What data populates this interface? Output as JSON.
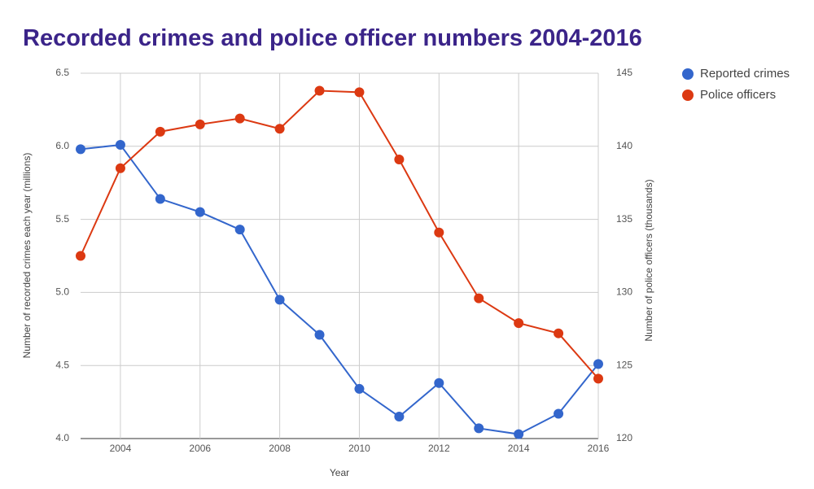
{
  "chart_data": {
    "type": "line",
    "title": "Recorded crimes and police officer numbers 2004-2016",
    "x_label": "Year",
    "y_label": "Number of recorded crimes each year (millions)",
    "y2_label": "Number of police officers (thousands)",
    "x": [
      2003,
      2004,
      2005,
      2006,
      2007,
      2008,
      2009,
      2010,
      2011,
      2012,
      2013,
      2014,
      2015,
      2016
    ],
    "xlim": [
      2003,
      2016
    ],
    "xticks": [
      2004,
      2006,
      2008,
      2010,
      2012,
      2014,
      2016
    ],
    "ylim": [
      4,
      6.5
    ],
    "yticks": [
      {
        "value": 4,
        "label": "4.0"
      },
      4.5,
      {
        "value": 5,
        "label": "5.0"
      },
      5.5,
      {
        "value": 6,
        "label": "6.0"
      },
      6.5
    ],
    "y2lim": [
      120,
      145
    ],
    "y2ticks": [
      120,
      125,
      130,
      135,
      140,
      145
    ],
    "grid": true,
    "legend": "right",
    "series": [
      {
        "name": "Reported crimes",
        "color": "#3366cc",
        "axis": "y",
        "values": [
          5.98,
          6.01,
          5.64,
          5.55,
          5.43,
          4.95,
          4.71,
          4.34,
          4.15,
          4.38,
          4.07,
          4.03,
          4.17,
          4.51
        ]
      },
      {
        "name": "Police officers",
        "color": "#dc3912",
        "axis": "y2",
        "values": [
          132.5,
          138.5,
          141.0,
          141.5,
          141.9,
          141.2,
          143.8,
          143.7,
          139.1,
          134.1,
          129.6,
          127.9,
          127.2,
          124.1
        ]
      }
    ]
  }
}
